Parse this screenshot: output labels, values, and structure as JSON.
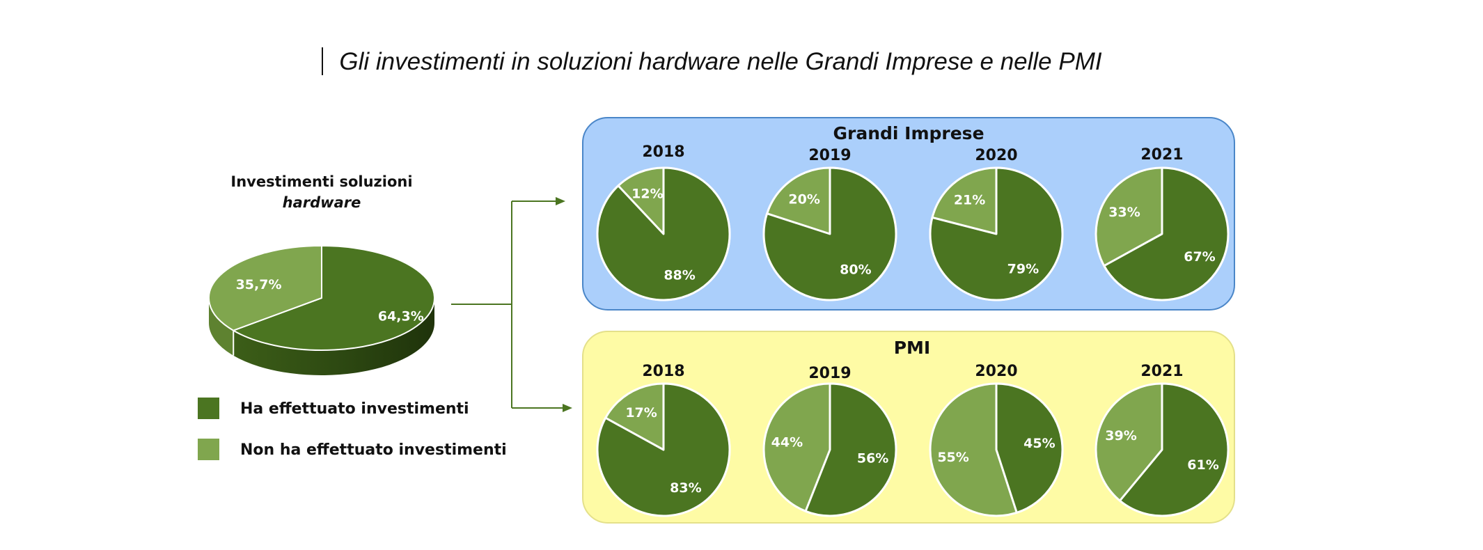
{
  "title": "Gli investimenti in soluzioni hardware nelle Grandi Imprese e nelle PMI",
  "colors": {
    "invested": "#4b7521",
    "not_invested": "#80a64e",
    "grandi_bg": "#abcffb",
    "grandi_border": "#4a86c8",
    "pmi_bg": "#fefba5",
    "pmi_border": "#e4e08a",
    "arrow": "#4b7521"
  },
  "chart_data": [
    {
      "type": "pie",
      "title": "Investimenti soluzioni",
      "title_italic": "hardware",
      "slices": [
        {
          "label": "Ha effettuato investimenti",
          "value": 64.3,
          "text": "64,3%"
        },
        {
          "label": "Non ha effettuato investimenti",
          "value": 35.7,
          "text": "35,7%"
        }
      ],
      "legend": [
        "Ha effettuato investimenti",
        "Non ha effettuato investimenti"
      ]
    },
    {
      "type": "pie",
      "group": "Grandi Imprese",
      "pies": [
        {
          "year": "2018",
          "invested": 88,
          "not_invested": 12,
          "invested_text": "88%",
          "not_text": "12%"
        },
        {
          "year": "2019",
          "invested": 80,
          "not_invested": 20,
          "invested_text": "80%",
          "not_text": "20%"
        },
        {
          "year": "2020",
          "invested": 79,
          "not_invested": 21,
          "invested_text": "79%",
          "not_text": "21%"
        },
        {
          "year": "2021",
          "invested": 67,
          "not_invested": 33,
          "invested_text": "67%",
          "not_text": "33%"
        }
      ]
    },
    {
      "type": "pie",
      "group": "PMI",
      "pies": [
        {
          "year": "2018",
          "invested": 83,
          "not_invested": 17,
          "invested_text": "83%",
          "not_text": "17%"
        },
        {
          "year": "2019",
          "invested": 56,
          "not_invested": 44,
          "invested_text": "56%",
          "not_text": "44%"
        },
        {
          "year": "2020",
          "invested": 45,
          "not_invested": 55,
          "invested_text": "45%",
          "not_text": "55%"
        },
        {
          "year": "2021",
          "invested": 61,
          "not_invested": 39,
          "invested_text": "61%",
          "not_text": "39%"
        }
      ]
    }
  ]
}
